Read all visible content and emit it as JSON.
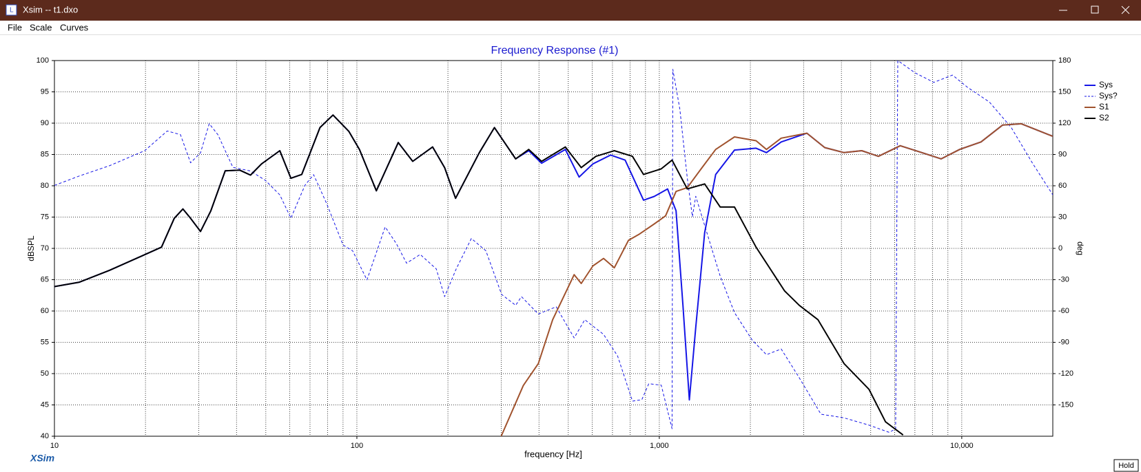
{
  "window": {
    "title": "Xsim -- t1.dxo"
  },
  "menu": [
    "File",
    "Scale",
    "Curves"
  ],
  "brand": "XSim",
  "hold_button": "Hold",
  "chart_data": {
    "type": "line",
    "title": "Frequency Response (#1)",
    "x_label": "frequency [Hz]",
    "y_label": "dBSPL",
    "y2_label": "deg",
    "xscale": "log",
    "grid": true,
    "legend": "right",
    "xlim": [
      10,
      20000
    ],
    "xticks": [
      10,
      100,
      {
        "value": 1000,
        "label": "1,000"
      },
      {
        "value": 10000,
        "label": "10,000"
      }
    ],
    "xminorticks": [
      20,
      30,
      40,
      50,
      60,
      70,
      80,
      90,
      200,
      300,
      400,
      500,
      600,
      700,
      800,
      900,
      2000,
      3000,
      4000,
      5000,
      6000,
      7000,
      8000,
      9000
    ],
    "ylim": [
      40,
      100
    ],
    "yticks": [
      40,
      45,
      50,
      55,
      60,
      65,
      70,
      75,
      80,
      85,
      90,
      95,
      100
    ],
    "y2lim": [
      -180,
      180
    ],
    "y2ticks": [
      -150,
      -120,
      -90,
      -60,
      -30,
      0,
      30,
      60,
      90,
      120,
      150,
      180
    ],
    "series": [
      {
        "name": "Sys",
        "color": "#1414e6",
        "style": "solid",
        "width": 2,
        "x": [
          10,
          12.1,
          15.2,
          19.9,
          22.6,
          24.9,
          26.6,
          28.2,
          30.4,
          32.9,
          36.7,
          41,
          44.5,
          48.4,
          55.6,
          60.5,
          65.7,
          75.5,
          83.4,
          94,
          102,
          116,
          137,
          153,
          178,
          195,
          212,
          254,
          285,
          335,
          370,
          408,
          489,
          543,
          603,
          690,
          771,
          887,
          962,
          1065,
          1136,
          1197,
          1257,
          1320,
          1412,
          1536,
          1772,
          2088,
          2261,
          2529,
          3076,
          3523,
          4081,
          4669,
          5303,
          6261,
          7383,
          8551,
          9841,
          11580,
          13650,
          15740,
          20000
        ],
        "values": [
          63.9,
          64.6,
          66.5,
          69,
          70.2,
          74.8,
          76.3,
          74.8,
          72.7,
          76,
          82.4,
          82.5,
          81.7,
          83.5,
          85.6,
          81.2,
          81.8,
          89.3,
          91.3,
          88.7,
          85.8,
          79.2,
          86.9,
          83.9,
          86.2,
          82.9,
          78,
          85.3,
          89.3,
          84.3,
          85.6,
          83.6,
          85.8,
          81.4,
          83.5,
          84.9,
          84.1,
          77.7,
          78.3,
          79.5,
          76,
          60.9,
          45.8,
          57.4,
          72.5,
          81.8,
          85.7,
          86,
          85.3,
          87,
          88.4,
          86.1,
          85.3,
          85.6,
          84.7,
          86.4,
          85.3,
          84.3,
          85.8,
          87,
          89.7,
          89.9,
          87.9
        ]
      },
      {
        "name": "Sys?",
        "color": "#1414e6",
        "style": "dashed",
        "width": 1,
        "axis": "y2",
        "x": [
          10,
          12.1,
          15.2,
          19.9,
          23.6,
          26.1,
          28.2,
          30.4,
          32.5,
          34.7,
          38.9,
          44.5,
          49.8,
          55.6,
          60.5,
          67.3,
          71.9,
          79.5,
          90,
          96.8,
          108,
          124,
          135,
          146,
          162,
          183,
          195,
          213,
          239,
          267,
          301,
          335,
          350,
          398,
          456,
          523,
          567,
          654,
          728,
          815,
          875,
          923,
          1015,
          1102,
          1108,
          1169,
          1237,
          1286,
          1320,
          1412,
          1590,
          1772,
          2030,
          2261,
          2529,
          2903,
          3424,
          4081,
          4934,
          5757,
          6045,
          6144,
          7012,
          8085,
          9316,
          10450,
          12340,
          14560,
          17170,
          20000
        ],
        "values": [
          60.3,
          69.4,
          79.2,
          93.7,
          112.5,
          109,
          82,
          91.6,
          119.5,
          109,
          77.7,
          74.2,
          65.2,
          51.3,
          29,
          60.3,
          70.7,
          42.8,
          3.2,
          -2.3,
          -30.2,
          20.6,
          4.6,
          -14.2,
          -5.8,
          -19.7,
          -46.2,
          -19.7,
          9.5,
          -2.3,
          -44.1,
          -54.5,
          -46.2,
          -62.9,
          -56,
          -85.8,
          -68.4,
          -82.4,
          -103.2,
          -146.4,
          -145,
          -129.7,
          -131.1,
          -172.8,
          171.6,
          133.4,
          67.3,
          30.4,
          49.9,
          22,
          -26.7,
          -61.5,
          -88,
          -101.9,
          -96.4,
          -124.1,
          -158.9,
          -162.4,
          -169.4,
          -176.3,
          -172.8,
          180,
          168.2,
          159.1,
          166.1,
          154.3,
          140.3,
          116,
          81.2,
          51.3
        ]
      },
      {
        "name": "S1",
        "color": "#a0522d",
        "style": "solid",
        "width": 2,
        "x": [
          300,
          355,
          398,
          444,
          523,
          552,
          603,
          654,
          710,
          791,
          860,
          962,
          1049,
          1136,
          1237,
          1384,
          1536,
          1772,
          2088,
          2261,
          2529,
          3076,
          3523,
          4081,
          4669,
          5303,
          6261,
          7383,
          8551,
          9841,
          11580,
          13650,
          15740,
          20000
        ],
        "values": [
          40,
          48.1,
          51.6,
          58.6,
          65.8,
          64.4,
          67.2,
          68.4,
          66.9,
          71.3,
          72.3,
          73.9,
          75.2,
          79.1,
          79.7,
          82.9,
          85.8,
          87.8,
          87.2,
          85.8,
          87.6,
          88.4,
          86.1,
          85.3,
          85.6,
          84.7,
          86.4,
          85.3,
          84.3,
          85.8,
          87,
          89.7,
          89.9,
          87.9
        ]
      },
      {
        "name": "S2",
        "color": "#000000",
        "style": "solid",
        "width": 2,
        "x": [
          10,
          12.1,
          15.2,
          19.9,
          22.6,
          24.9,
          26.6,
          28.2,
          30.4,
          32.9,
          36.7,
          41,
          44.5,
          48.4,
          55.6,
          60.5,
          65.7,
          75.5,
          83.4,
          94,
          102,
          116,
          137,
          153,
          178,
          195,
          212,
          254,
          285,
          335,
          370,
          408,
          489,
          552,
          617,
          710,
          815,
          887,
          1015,
          1102,
          1237,
          1412,
          1590,
          1772,
          2088,
          2597,
          2903,
          3346,
          4081,
          4934,
          5597,
          6397
        ],
        "values": [
          63.9,
          64.6,
          66.5,
          69,
          70.2,
          74.8,
          76.3,
          74.8,
          72.7,
          76,
          82.4,
          82.5,
          81.7,
          83.5,
          85.6,
          81.2,
          81.8,
          89.3,
          91.3,
          88.7,
          85.8,
          79.2,
          86.9,
          83.9,
          86.2,
          82.9,
          78,
          85.3,
          89.3,
          84.3,
          85.8,
          83.9,
          86.2,
          82.9,
          84.7,
          85.6,
          84.7,
          81.8,
          82.7,
          84.1,
          79.5,
          80.3,
          76.6,
          76.6,
          70.2,
          63.2,
          60.9,
          58.6,
          51.6,
          47.5,
          42.3,
          40.2
        ]
      }
    ]
  }
}
